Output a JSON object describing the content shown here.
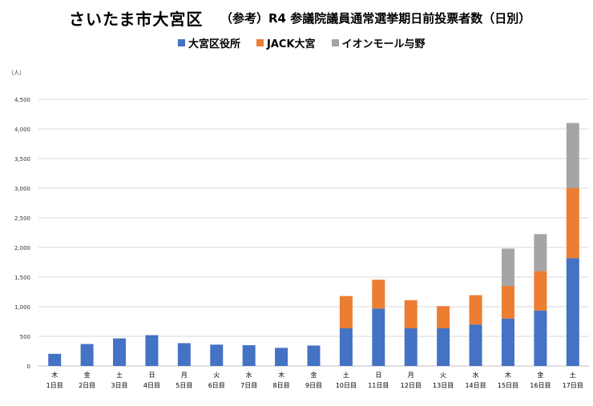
{
  "title": {
    "main": "さいたま市大宮区",
    "sub": "（参考）R4 参議院議員通常選挙期日前投票者数（日別）"
  },
  "colors": {
    "series_1": "#4472C4",
    "series_2": "#ED7D31",
    "series_3": "#A5A5A5",
    "grid": "#D9D9D9"
  },
  "chart_data": {
    "type": "bar",
    "stacked": true,
    "title": "（参考）R4 参議院議員通常選挙期日前投票者数（日別）",
    "ylabel": "（人）",
    "xlabel": "",
    "ylim": [
      0,
      4500
    ],
    "y_ticks": [
      "0",
      "500",
      "1,000",
      "1,500",
      "2,000",
      "2,500",
      "3,000",
      "3,500",
      "4,000",
      "4,500"
    ],
    "grid": true,
    "legend_position": "top",
    "weekdays": [
      "木",
      "金",
      "土",
      "日",
      "月",
      "火",
      "水",
      "木",
      "金",
      "土",
      "日",
      "月",
      "火",
      "水",
      "木",
      "金",
      "土"
    ],
    "categories": [
      "1日目",
      "2日目",
      "3日目",
      "4日目",
      "5日目",
      "6日目",
      "7日目",
      "8日目",
      "9日目",
      "10日目",
      "11日目",
      "12日目",
      "13日目",
      "14日目",
      "15日目",
      "16日目",
      "17日目"
    ],
    "series": [
      {
        "name": "大宮区役所",
        "values": [
          205,
          370,
          465,
          520,
          385,
          360,
          350,
          305,
          345,
          635,
          970,
          635,
          635,
          700,
          800,
          935,
          1820
        ]
      },
      {
        "name": "JACK大宮",
        "values": [
          0,
          0,
          0,
          0,
          0,
          0,
          0,
          0,
          0,
          545,
          485,
          475,
          375,
          495,
          550,
          665,
          1180
        ]
      },
      {
        "name": "イオンモール与野",
        "values": [
          0,
          0,
          0,
          0,
          0,
          0,
          0,
          0,
          0,
          0,
          0,
          0,
          0,
          0,
          630,
          625,
          1100
        ]
      }
    ]
  }
}
